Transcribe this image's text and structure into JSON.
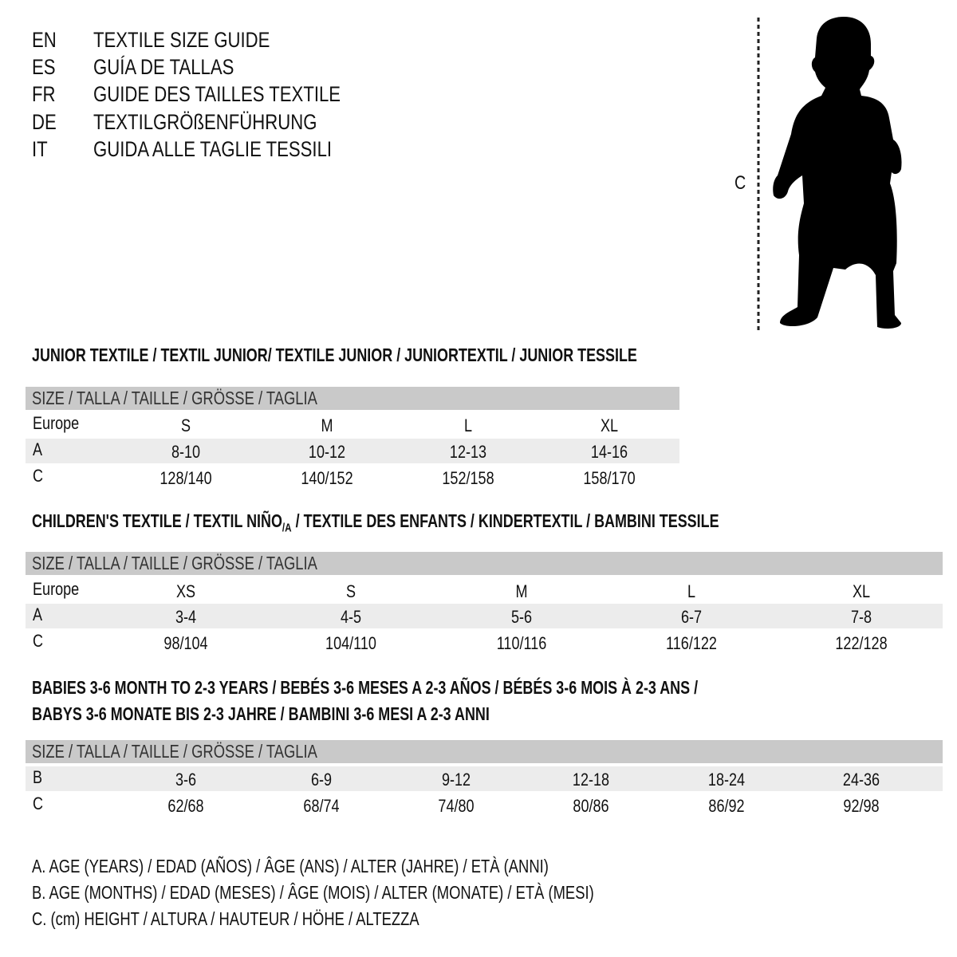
{
  "titles": [
    {
      "code": "EN",
      "text": "TEXTILE SIZE GUIDE"
    },
    {
      "code": "ES",
      "text": "GUÍA DE TALLAS"
    },
    {
      "code": "FR",
      "text": "GUIDE DES TAILLES TEXTILE"
    },
    {
      "code": "DE",
      "text": "TEXTILGRÖßENFÜHRUNG"
    },
    {
      "code": "IT",
      "text": "GUIDA ALLE TAGLIE TESSILI"
    }
  ],
  "figure": {
    "label": "C",
    "icon": "child-silhouette-icon"
  },
  "colors": {
    "header_bar": "#c9c9c9",
    "alt_row": "#ececec"
  },
  "sections": [
    {
      "heading": "JUNIOR TEXTILE / TEXTIL JUNIOR/ TEXTILE JUNIOR / JUNIORTEXTIL / JUNIOR TESSILE",
      "size_header": "SIZE / TALLA / TAILLE / GRÖSSE / TAGLIA",
      "rows": [
        {
          "label": "Europe",
          "values": [
            "S",
            "M",
            "L",
            "XL"
          ]
        },
        {
          "label": "A",
          "values": [
            "8-10",
            "10-12",
            "12-13",
            "14-16"
          ]
        },
        {
          "label": "C",
          "values": [
            "128/140",
            "140/152",
            "152/158",
            "158/170"
          ]
        }
      ]
    },
    {
      "heading": "CHILDREN'S TEXTILE / TEXTIL NIÑO/A / TEXTILE DES ENFANTS / KINDERTEXTIL / BAMBINI TESSILE",
      "size_header": "SIZE / TALLA / TAILLE / GRÖSSE / TAGLIA",
      "rows": [
        {
          "label": "Europe",
          "values": [
            "XS",
            "S",
            "M",
            "L",
            "XL"
          ]
        },
        {
          "label": "A",
          "values": [
            "3-4",
            "4-5",
            "5-6",
            "6-7",
            "7-8"
          ]
        },
        {
          "label": "C",
          "values": [
            "98/104",
            "104/110",
            "110/116",
            "116/122",
            "122/128"
          ]
        }
      ]
    },
    {
      "heading": "BABIES 3-6 MONTH TO 2-3 YEARS / BEBÉS 3-6 MESES A 2-3 AÑOS / BÉBÉS 3-6 MOIS À 2-3 ANS /",
      "heading2": "BABYS 3-6 MONATE BIS 2-3 JAHRE / BAMBINI 3-6 MESI A 2-3 ANNI",
      "size_header": "SIZE / TALLA / TAILLE / GRÖSSE / TAGLIA",
      "rows": [
        {
          "label": "B",
          "values": [
            "3-6",
            "6-9",
            "9-12",
            "12-18",
            "18-24",
            "24-36"
          ]
        },
        {
          "label": "C",
          "values": [
            "62/68",
            "68/74",
            "74/80",
            "80/86",
            "86/92",
            "92/98"
          ]
        }
      ]
    }
  ],
  "legend": [
    "A. AGE (YEARS) / EDAD (AÑOS) / ÂGE (ANS) / ALTER (JAHRE) / ETÀ (ANNI)",
    "B. AGE (MONTHS) / EDAD (MESES) / ÂGE (MOIS) / ALTER (MONATE) / ETÀ (MESI)",
    "C. (cm) HEIGHT / ALTURA / HAUTEUR / HÖHE / ALTEZZA"
  ]
}
